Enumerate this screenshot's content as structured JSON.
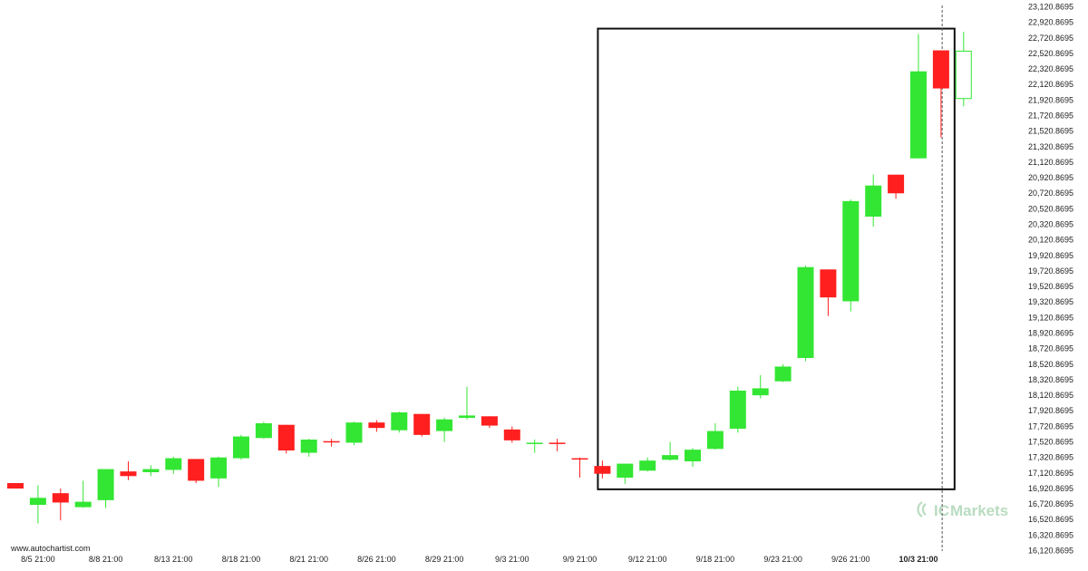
{
  "chart_data": {
    "type": "candlestick",
    "title": "",
    "xlabel": "",
    "ylabel": "",
    "ylim": [
      16120.8695,
      23120.8695
    ],
    "y_ticks": [
      "23,120.8695",
      "22,920.8695",
      "22,720.8695",
      "22,520.8695",
      "22,320.8695",
      "22,120.8695",
      "21,920.8695",
      "21,720.8695",
      "21,520.8695",
      "21,320.8695",
      "21,120.8695",
      "20,920.8695",
      "20,720.8695",
      "20,520.8695",
      "20,320.8695",
      "20,120.8695",
      "19,920.8695",
      "19,720.8695",
      "19,520.8695",
      "19,320.8695",
      "19,120.8695",
      "18,920.8695",
      "18,720.8695",
      "18,520.8695",
      "18,320.8695",
      "18,120.8695",
      "17,920.8695",
      "17,720.8695",
      "17,520.8695",
      "17,320.8695",
      "17,120.8695",
      "16,920.8695",
      "16,720.8695",
      "16,520.8695",
      "16,320.8695",
      "16,120.8695"
    ],
    "x_ticks": [
      {
        "label": "8/5 21:00",
        "index": 1,
        "bold": false
      },
      {
        "label": "8/8 21:00",
        "index": 4,
        "bold": false
      },
      {
        "label": "8/13 21:00",
        "index": 7,
        "bold": false
      },
      {
        "label": "8/18 21:00",
        "index": 10,
        "bold": false
      },
      {
        "label": "8/21 21:00",
        "index": 13,
        "bold": false
      },
      {
        "label": "8/26 21:00",
        "index": 16,
        "bold": false
      },
      {
        "label": "8/29 21:00",
        "index": 19,
        "bold": false
      },
      {
        "label": "9/3 21:00",
        "index": 22,
        "bold": false
      },
      {
        "label": "9/9 21:00",
        "index": 25,
        "bold": false
      },
      {
        "label": "9/12 21:00",
        "index": 28,
        "bold": false
      },
      {
        "label": "9/18 21:00",
        "index": 31,
        "bold": false
      },
      {
        "label": "9/23 21:00",
        "index": 34,
        "bold": false
      },
      {
        "label": "9/26 21:00",
        "index": 37,
        "bold": false
      },
      {
        "label": "10/3 21:00",
        "index": 40,
        "bold": true
      }
    ],
    "candles": [
      {
        "o": 16990,
        "h": 16990,
        "l": 16920,
        "c": 16920
      },
      {
        "o": 16710,
        "h": 16960,
        "l": 16470,
        "c": 16800
      },
      {
        "o": 16860,
        "h": 16920,
        "l": 16510,
        "c": 16740
      },
      {
        "o": 16680,
        "h": 17020,
        "l": 16670,
        "c": 16750
      },
      {
        "o": 16770,
        "h": 17170,
        "l": 16670,
        "c": 17170
      },
      {
        "o": 17140,
        "h": 17270,
        "l": 17030,
        "c": 17080
      },
      {
        "o": 17130,
        "h": 17220,
        "l": 17080,
        "c": 17170
      },
      {
        "o": 17160,
        "h": 17330,
        "l": 17110,
        "c": 17310
      },
      {
        "o": 17300,
        "h": 17300,
        "l": 16990,
        "c": 17020
      },
      {
        "o": 17050,
        "h": 17330,
        "l": 16940,
        "c": 17320
      },
      {
        "o": 17310,
        "h": 17610,
        "l": 17290,
        "c": 17590
      },
      {
        "o": 17570,
        "h": 17780,
        "l": 17560,
        "c": 17760
      },
      {
        "o": 17740,
        "h": 17740,
        "l": 17370,
        "c": 17410
      },
      {
        "o": 17380,
        "h": 17560,
        "l": 17330,
        "c": 17550
      },
      {
        "o": 17530,
        "h": 17560,
        "l": 17460,
        "c": 17520
      },
      {
        "o": 17510,
        "h": 17780,
        "l": 17480,
        "c": 17770
      },
      {
        "o": 17770,
        "h": 17800,
        "l": 17650,
        "c": 17700
      },
      {
        "o": 17670,
        "h": 17910,
        "l": 17640,
        "c": 17900
      },
      {
        "o": 17880,
        "h": 17880,
        "l": 17590,
        "c": 17610
      },
      {
        "o": 17660,
        "h": 17830,
        "l": 17520,
        "c": 17810
      },
      {
        "o": 17830,
        "h": 18230,
        "l": 17810,
        "c": 17860
      },
      {
        "o": 17850,
        "h": 17850,
        "l": 17700,
        "c": 17730
      },
      {
        "o": 17680,
        "h": 17720,
        "l": 17510,
        "c": 17540
      },
      {
        "o": 17500,
        "h": 17550,
        "l": 17380,
        "c": 17510
      },
      {
        "o": 17510,
        "h": 17560,
        "l": 17400,
        "c": 17500
      },
      {
        "o": 17310,
        "h": 17320,
        "l": 17060,
        "c": 17300
      },
      {
        "o": 17210,
        "h": 17280,
        "l": 17050,
        "c": 17110
      },
      {
        "o": 17060,
        "h": 17230,
        "l": 16980,
        "c": 17240
      },
      {
        "o": 17150,
        "h": 17320,
        "l": 17140,
        "c": 17280
      },
      {
        "o": 17290,
        "h": 17520,
        "l": 17280,
        "c": 17350
      },
      {
        "o": 17270,
        "h": 17440,
        "l": 17200,
        "c": 17420
      },
      {
        "o": 17430,
        "h": 17760,
        "l": 17420,
        "c": 17660
      },
      {
        "o": 17690,
        "h": 18230,
        "l": 17640,
        "c": 18180
      },
      {
        "o": 18120,
        "h": 18380,
        "l": 18080,
        "c": 18210
      },
      {
        "o": 18300,
        "h": 18520,
        "l": 18290,
        "c": 18490
      },
      {
        "o": 18600,
        "h": 19790,
        "l": 18560,
        "c": 19770
      },
      {
        "o": 19740,
        "h": 19740,
        "l": 19140,
        "c": 19380
      },
      {
        "o": 19330,
        "h": 20640,
        "l": 19200,
        "c": 20620
      },
      {
        "o": 20420,
        "h": 20960,
        "l": 20290,
        "c": 20820
      },
      {
        "o": 20960,
        "h": 20960,
        "l": 20650,
        "c": 20720
      },
      {
        "o": 21170,
        "h": 22770,
        "l": 21170,
        "c": 22290
      },
      {
        "o": 22560,
        "h": 22560,
        "l": 21440,
        "c": 22070
      },
      {
        "o": 21940,
        "h": 22800,
        "l": 21840,
        "c": 22550
      }
    ],
    "up_color": "#33e633",
    "down_color": "#ff1f1f",
    "last_candle_style": "hollow",
    "pattern_box": {
      "start_index": 25.8,
      "end_index": 41.6,
      "high": 22840,
      "low": 16910
    },
    "vertical_marker_index": 41.05,
    "grid": false
  },
  "watermark": {
    "source": "www.autochartist.com",
    "brand_prefix": "IC",
    "brand_name": "Markets",
    "brand_color": "#b9dcc0"
  }
}
